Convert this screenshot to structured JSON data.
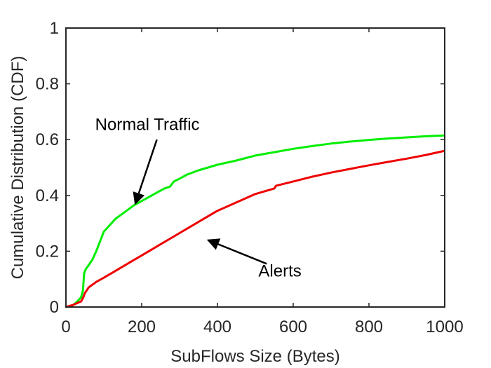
{
  "chart_data": {
    "type": "line",
    "title": "",
    "xlabel": "SubFlows Size (Bytes)",
    "ylabel": "Cumulative Distribution (CDF)",
    "xlim": [
      0,
      1000
    ],
    "ylim": [
      0,
      1
    ],
    "xticks": [
      0,
      200,
      400,
      600,
      800,
      1000
    ],
    "xtick_labels": [
      "0",
      "200",
      "400",
      "600",
      "800",
      "1000"
    ],
    "yticks": [
      0,
      0.2,
      0.4,
      0.6,
      0.8,
      1
    ],
    "ytick_labels": [
      "0",
      "0.2",
      "0.4",
      "0.6",
      "0.8",
      "1"
    ],
    "grid": false,
    "series": [
      {
        "color": "#00ee00",
        "x": [
          0,
          10,
          20,
          30,
          40,
          45,
          48,
          52,
          60,
          70,
          80,
          90,
          100,
          110,
          120,
          130,
          140,
          150,
          160,
          170,
          180,
          200,
          220,
          240,
          260,
          275,
          285,
          300,
          320,
          350,
          400,
          450,
          500,
          550,
          600,
          650,
          700,
          750,
          800,
          850,
          900,
          950,
          1000
        ],
        "y": [
          0,
          0.002,
          0.008,
          0.02,
          0.035,
          0.06,
          0.12,
          0.135,
          0.15,
          0.17,
          0.2,
          0.235,
          0.27,
          0.285,
          0.3,
          0.315,
          0.325,
          0.335,
          0.345,
          0.355,
          0.365,
          0.38,
          0.395,
          0.41,
          0.425,
          0.432,
          0.45,
          0.46,
          0.475,
          0.49,
          0.51,
          0.525,
          0.543,
          0.555,
          0.567,
          0.577,
          0.586,
          0.593,
          0.599,
          0.604,
          0.608,
          0.612,
          0.615
        ]
      },
      {
        "color": "#ee0000",
        "x": [
          0,
          20,
          40,
          45,
          50,
          60,
          80,
          100,
          125,
          150,
          175,
          200,
          225,
          250,
          275,
          300,
          325,
          350,
          375,
          400,
          450,
          500,
          550,
          555,
          600,
          650,
          700,
          750,
          800,
          850,
          900,
          950,
          1000
        ],
        "y": [
          0,
          0.008,
          0.02,
          0.032,
          0.05,
          0.07,
          0.09,
          0.105,
          0.125,
          0.145,
          0.165,
          0.185,
          0.205,
          0.225,
          0.245,
          0.265,
          0.285,
          0.305,
          0.325,
          0.345,
          0.375,
          0.405,
          0.425,
          0.435,
          0.45,
          0.467,
          0.482,
          0.495,
          0.508,
          0.52,
          0.532,
          0.545,
          0.56
        ]
      }
    ],
    "annotations": [
      {
        "text": "Normal Traffic",
        "x": 215,
        "y": 0.655,
        "arrow_from": [
          240,
          0.6
        ],
        "arrow_to": [
          183,
          0.37
        ]
      },
      {
        "text": "Alerts",
        "x": 565,
        "y": 0.13,
        "arrow_from": [
          530,
          0.155
        ],
        "arrow_to": [
          375,
          0.24
        ]
      }
    ]
  }
}
